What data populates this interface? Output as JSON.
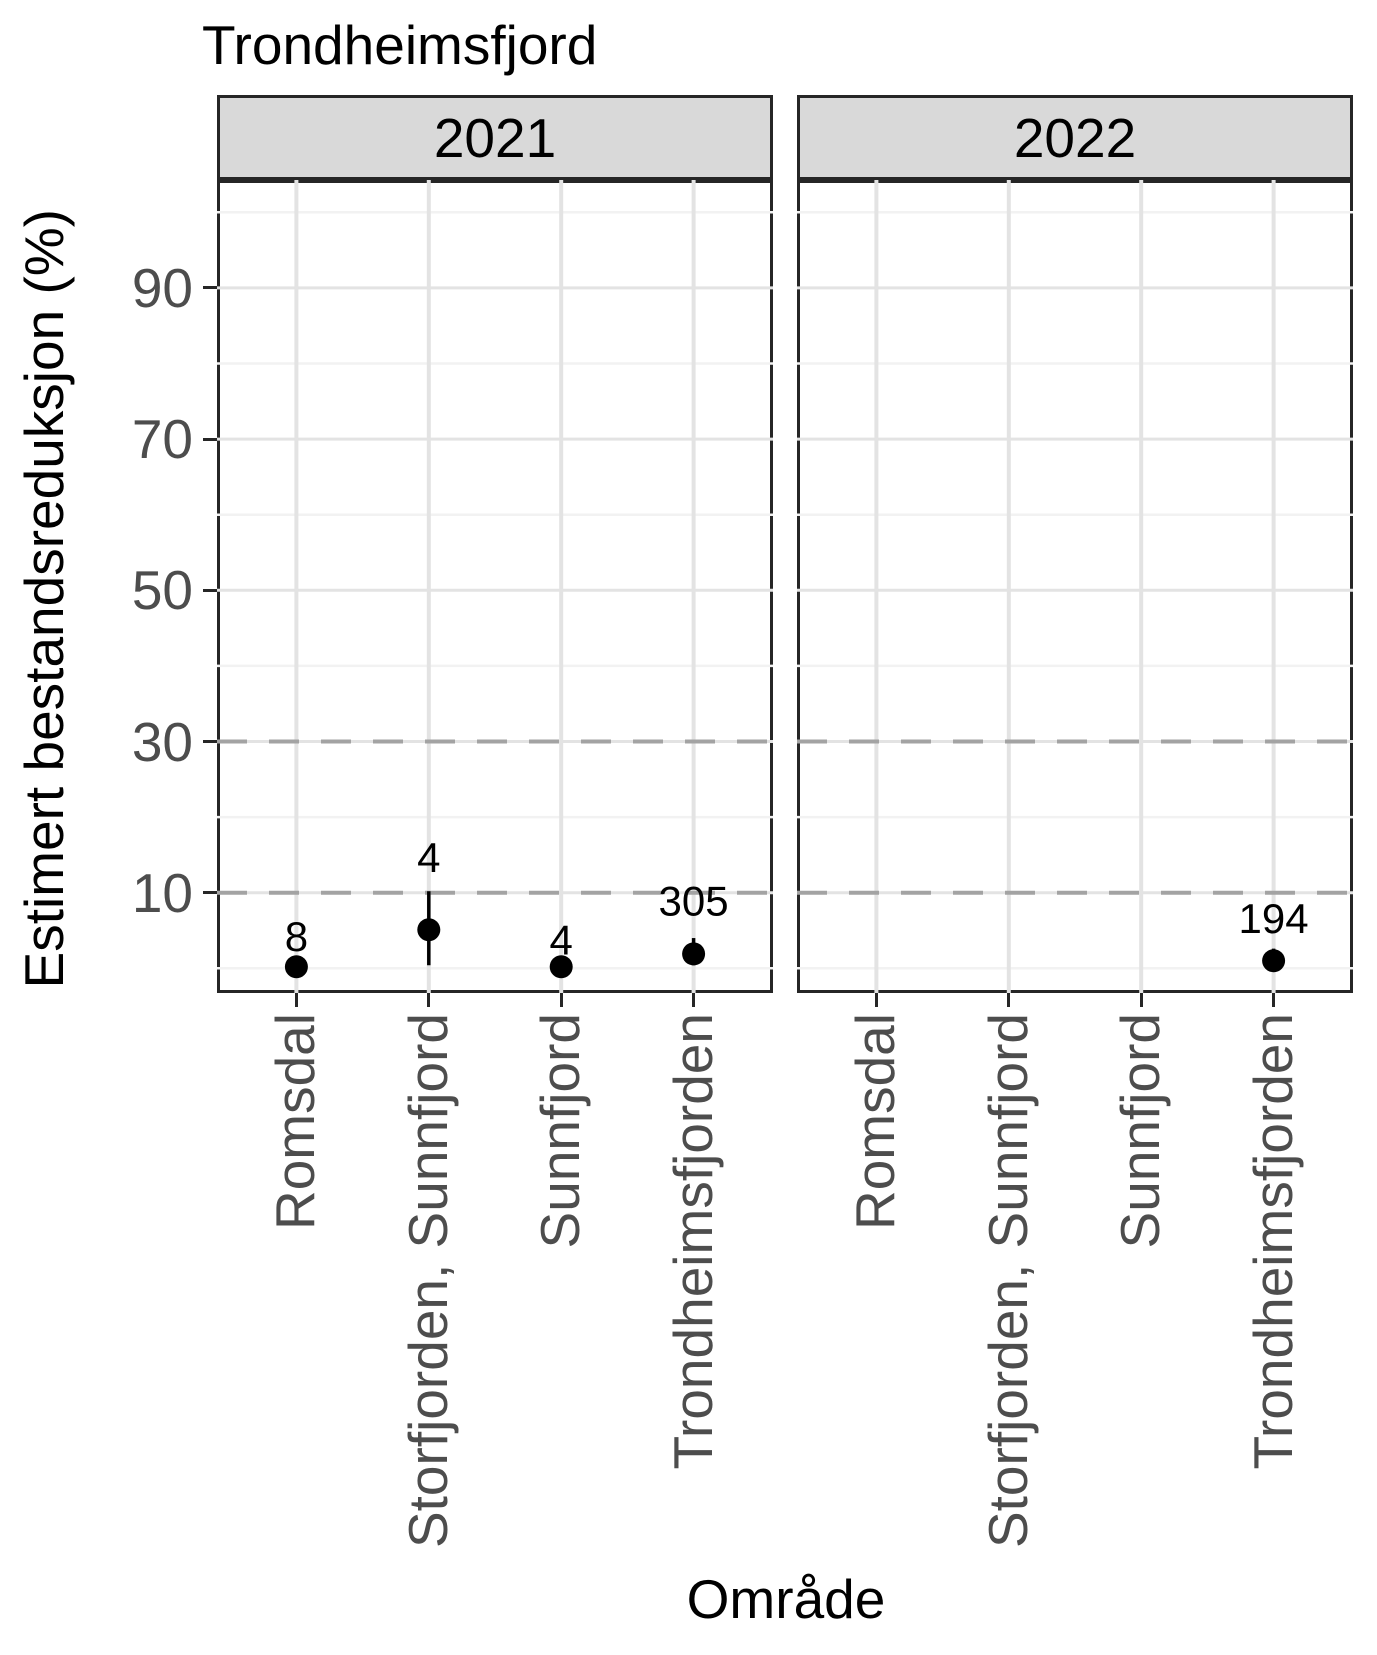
{
  "chart_data": {
    "type": "scatter",
    "title": "Trondheimsfjord",
    "xlabel": "Område",
    "ylabel": "Estimert bestandsreduksjon (%)",
    "categories": [
      "Romsdal",
      "Storfjorden, Sunnfjord",
      "Sunnfjord",
      "Trondheimsfjorden"
    ],
    "y_ticks": [
      10,
      30,
      50,
      70,
      90
    ],
    "y_minor_ticks": [
      0,
      20,
      40,
      60,
      80,
      100
    ],
    "ylim": [
      -3.3,
      104.3
    ],
    "reference_lines_dashed_y": [
      10,
      30
    ],
    "grid": true,
    "legend": "none",
    "facets": [
      {
        "label": "2021",
        "points": [
          {
            "category": "Romsdal",
            "value": 0.2,
            "ci_low": null,
            "ci_high": null,
            "label": "8",
            "label_y": 4.3
          },
          {
            "category": "Storfjorden, Sunnfjord",
            "value": 5.1,
            "ci_low": 0.4,
            "ci_high": 10.2,
            "label": "4",
            "label_y": 14.7
          },
          {
            "category": "Sunnfjord",
            "value": 0.2,
            "ci_low": null,
            "ci_high": null,
            "label": "4",
            "label_y": 3.8
          },
          {
            "category": "Trondheimsfjorden",
            "value": 1.9,
            "ci_low": 0.4,
            "ci_high": 4.0,
            "label": "305",
            "label_y": 9.0
          }
        ]
      },
      {
        "label": "2022",
        "points": [
          {
            "category": "Trondheimsfjorden",
            "value": 1.0,
            "ci_low": 0.3,
            "ci_high": 2.6,
            "label": "194",
            "label_y": 6.65
          }
        ]
      }
    ]
  },
  "colors": {
    "strip_bg": "#d9d9d9",
    "panel_border": "#262626",
    "grid_major": "#e3e3e3",
    "grid_minor": "#f2f2f2",
    "dashed_line": "#a3a3a3",
    "axis_text": "#4d4d4d",
    "point": "#000000"
  }
}
